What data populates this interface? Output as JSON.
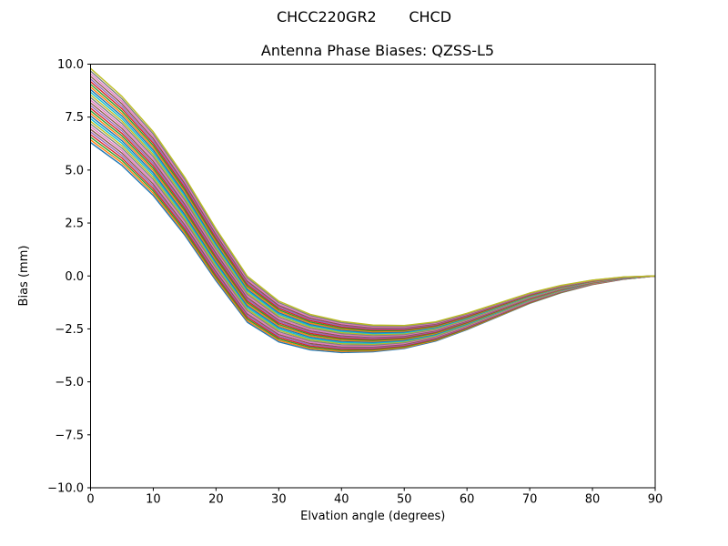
{
  "header": {
    "suptitle": "CHCC220GR2       CHCD",
    "title": "Antenna Phase Biases: QZSS-L5"
  },
  "axes": {
    "xlabel": "Elvation angle (degrees)",
    "ylabel": "Bias (mm)",
    "xlim": [
      0,
      90
    ],
    "ylim": [
      -10,
      10
    ],
    "xtick_values": [
      0,
      10,
      20,
      30,
      40,
      50,
      60,
      70,
      80,
      90
    ],
    "xtick_labels": [
      "0",
      "10",
      "20",
      "30",
      "40",
      "50",
      "60",
      "70",
      "80",
      "90"
    ],
    "ytick_values": [
      10.0,
      7.5,
      5.0,
      2.5,
      0.0,
      -2.5,
      -5.0,
      -7.5,
      -10.0
    ],
    "ytick_labels": [
      "10.0",
      "7.5",
      "5.0",
      "2.5",
      "0.0",
      "−2.5",
      "−5.0",
      "−7.5",
      "−10.0"
    ],
    "grid": false,
    "spine_color": "#000000",
    "background_color": "#ffffff"
  },
  "chart_data": {
    "type": "line",
    "title": "Antenna Phase Biases: QZSS-L5",
    "xlabel": "Elvation angle (degrees)",
    "ylabel": "Bias (mm)",
    "xlim": [
      0,
      90
    ],
    "ylim": [
      -10,
      10
    ],
    "grid": false,
    "legend": "none",
    "description": "Bundle of 29 unlabeled antenna phase bias curves vs elevation angle; all curves share the same shape: start between ~6.3 and ~9.8 mm at 0 deg, cross zero near 20-23 deg, reach a minimum of about -2.3 to -3.6 mm near 45 deg, then converge smoothly to 0.0 mm at 90 deg.",
    "x": [
      0,
      5,
      10,
      15,
      20,
      25,
      30,
      35,
      40,
      45,
      50,
      55,
      60,
      65,
      70,
      75,
      80,
      85,
      90
    ],
    "mean_curve": [
      8.05,
      6.85,
      5.3,
      3.3,
      1.0,
      -1.1,
      -2.15,
      -2.65,
      -2.88,
      -2.95,
      -2.88,
      -2.62,
      -2.15,
      -1.6,
      -1.05,
      -0.62,
      -0.3,
      -0.1,
      0.0
    ],
    "num_lines": 29,
    "series_model": {
      "formula": "series[i][j] = mean_curve[j] + offsets[i] * spread_decay[j]",
      "offsets": [
        -1.75,
        -1.625,
        -1.5,
        -1.375,
        -1.25,
        -1.125,
        -1.0,
        -0.875,
        -0.75,
        -0.625,
        -0.5,
        -0.375,
        -0.25,
        -0.125,
        0.0,
        0.125,
        0.25,
        0.375,
        0.5,
        0.625,
        0.75,
        0.875,
        1.0,
        1.125,
        1.25,
        1.375,
        1.5,
        1.625,
        1.75
      ],
      "spread_decay": [
        1.0,
        0.93,
        0.86,
        0.78,
        0.7,
        0.62,
        0.55,
        0.48,
        0.42,
        0.36,
        0.31,
        0.26,
        0.22,
        0.18,
        0.14,
        0.1,
        0.06,
        0.03,
        0.0
      ]
    },
    "colors": [
      "#1f77b4",
      "#ff7f0e",
      "#2ca02c",
      "#d62728",
      "#9467bd",
      "#8c564b",
      "#e377c2",
      "#7f7f7f",
      "#bcbd22",
      "#17becf"
    ]
  }
}
